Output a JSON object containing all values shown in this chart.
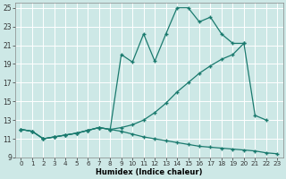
{
  "xlabel": "Humidex (Indice chaleur)",
  "xlim": [
    -0.5,
    23.5
  ],
  "ylim": [
    9,
    25.5
  ],
  "xticks": [
    0,
    1,
    2,
    3,
    4,
    5,
    6,
    7,
    8,
    9,
    10,
    11,
    12,
    13,
    14,
    15,
    16,
    17,
    18,
    19,
    20,
    21,
    22,
    23
  ],
  "yticks": [
    9,
    11,
    13,
    15,
    17,
    19,
    21,
    23,
    25
  ],
  "bg_color": "#cde8e6",
  "grid_color": "#ffffff",
  "line_color": "#1a7a6e",
  "line1_x": [
    0,
    1,
    2,
    3,
    4,
    5,
    6,
    7,
    8,
    9,
    10,
    11,
    12,
    13,
    14,
    15,
    16,
    17,
    18,
    19,
    20,
    21,
    22,
    23
  ],
  "line1_y": [
    12.0,
    11.8,
    11.0,
    11.2,
    11.4,
    11.6,
    11.9,
    12.2,
    12.0,
    11.8,
    11.5,
    11.2,
    11.0,
    10.8,
    10.6,
    10.4,
    10.2,
    10.1,
    10.0,
    9.9,
    9.8,
    9.7,
    9.5,
    9.4
  ],
  "line2_x": [
    0,
    1,
    2,
    3,
    4,
    5,
    6,
    7,
    8,
    9,
    10,
    11,
    12,
    13,
    14,
    15,
    16,
    17,
    18,
    19,
    20,
    21,
    22
  ],
  "line2_y": [
    12.0,
    11.8,
    11.0,
    11.2,
    11.4,
    11.6,
    11.9,
    12.2,
    12.0,
    12.2,
    12.5,
    13.0,
    13.8,
    14.8,
    16.0,
    17.0,
    18.0,
    18.8,
    19.5,
    20.0,
    21.2,
    13.5,
    13.0
  ],
  "line3_x": [
    0,
    1,
    2,
    3,
    4,
    5,
    6,
    7,
    8,
    9,
    10,
    11,
    12,
    13,
    14,
    15,
    16,
    17,
    18,
    19,
    20
  ],
  "line3_y": [
    12.0,
    11.8,
    11.0,
    11.2,
    11.4,
    11.6,
    11.9,
    12.2,
    12.0,
    20.0,
    19.2,
    22.2,
    19.3,
    22.2,
    25.0,
    25.0,
    23.5,
    24.0,
    22.2,
    21.2,
    21.2
  ]
}
